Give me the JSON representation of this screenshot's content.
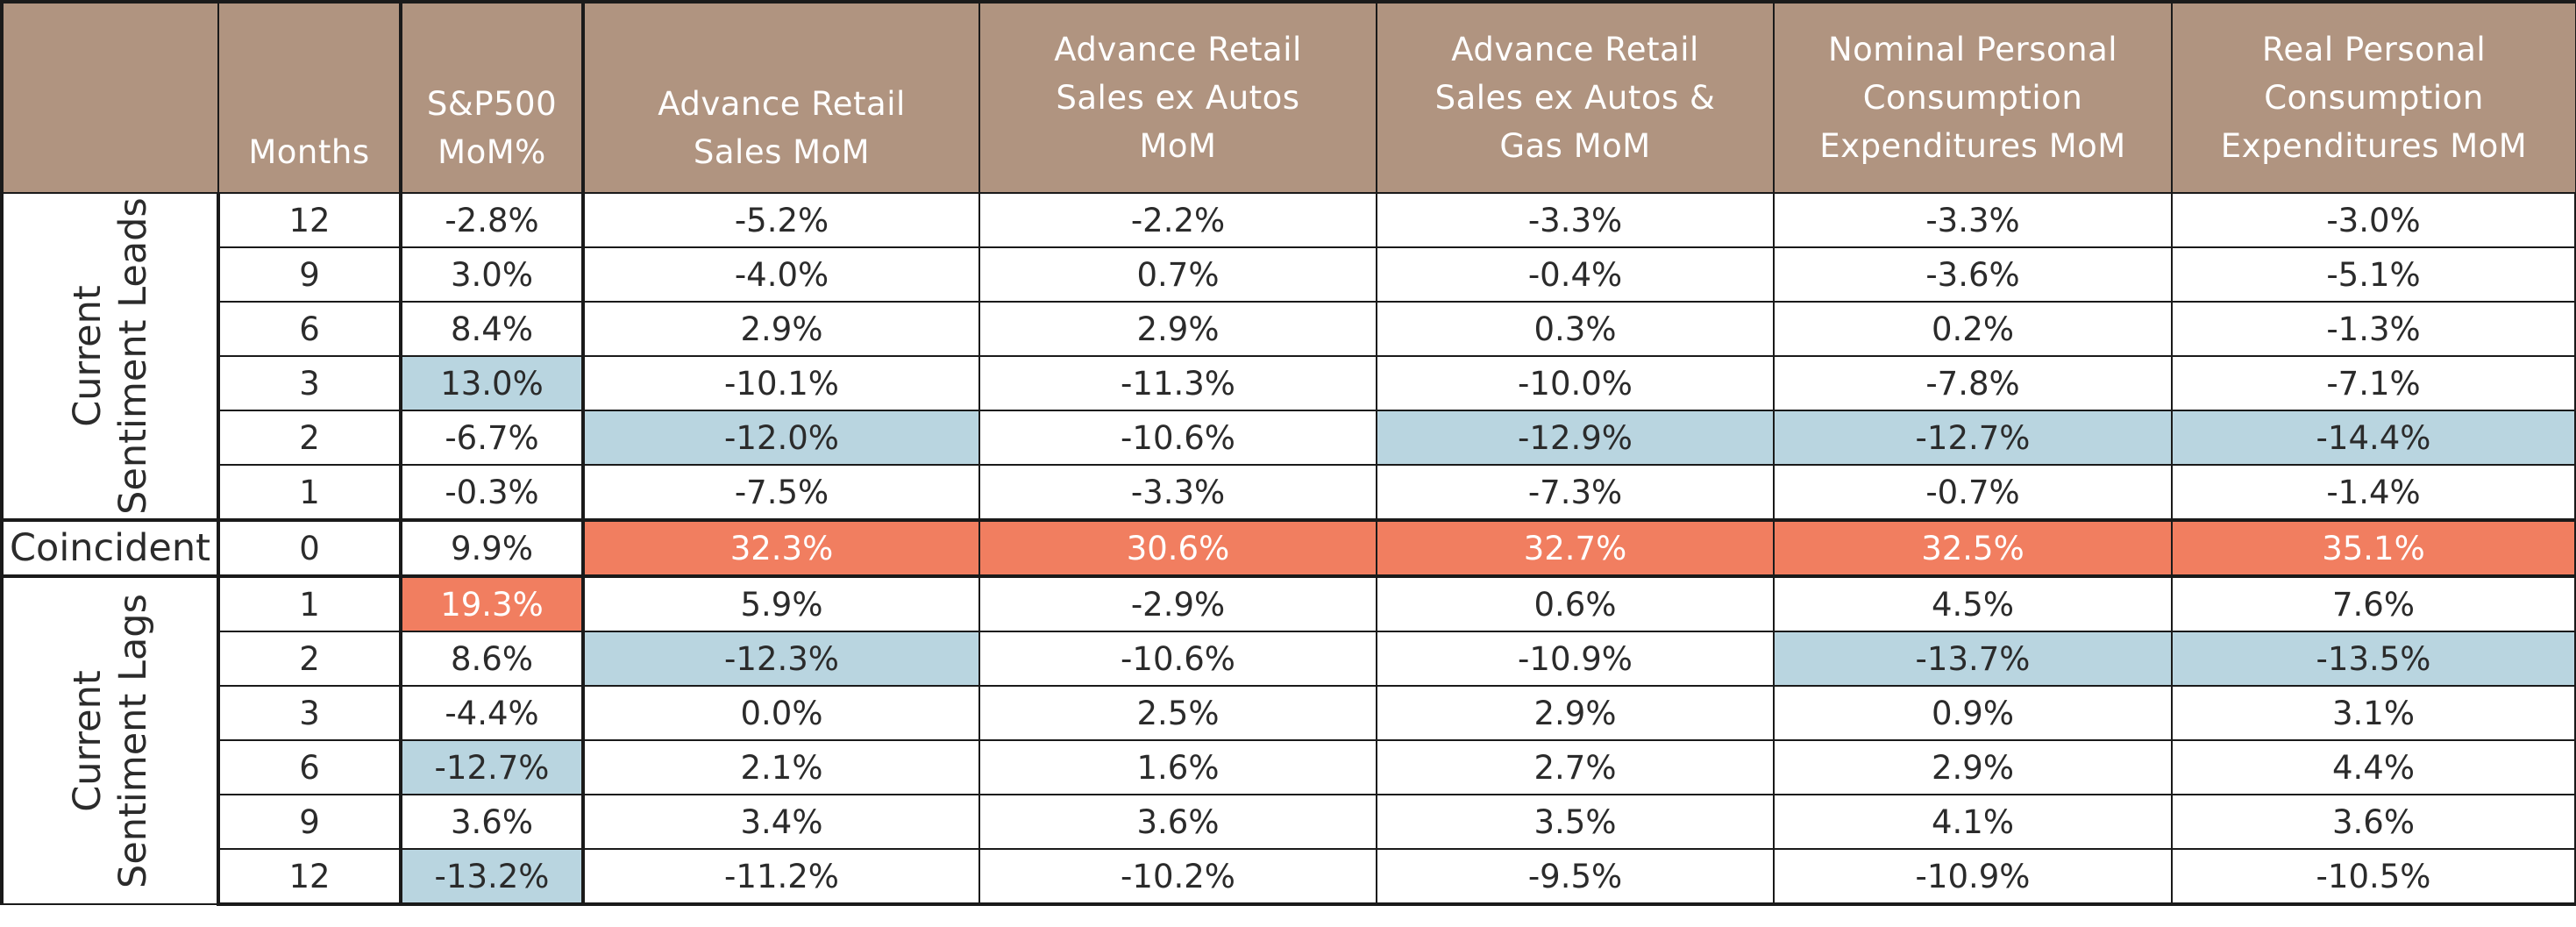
{
  "chart_data": {
    "type": "table",
    "columns": [
      "",
      "Months",
      "S&P500 MoM%",
      "Advance Retail Sales MoM",
      "Advance Retail Sales ex Autos MoM",
      "Advance Retail Sales ex Autos & Gas MoM",
      "Nominal Personal Consumption Expenditures MoM",
      "Real Personal Consumption Expenditures MoM"
    ],
    "column_lines": [
      [],
      [
        "Months"
      ],
      [
        "S&P500",
        "MoM%"
      ],
      [
        "Advance Retail",
        "Sales MoM"
      ],
      [
        "Advance Retail",
        "Sales ex Autos",
        "MoM"
      ],
      [
        "Advance Retail",
        "Sales ex Autos &",
        "Gas MoM"
      ],
      [
        "Nominal Personal",
        "Consumption",
        "Expenditures MoM"
      ],
      [
        "Real Personal",
        "Consumption",
        "Expenditures MoM"
      ]
    ],
    "highlight_colors": {
      "blue": "#b9d5e0",
      "red": "#f17e60",
      "header": "#b09480"
    },
    "groups": [
      {
        "label": "Current Sentiment Leads",
        "label_lines": [
          "Current",
          "Sentiment Leads"
        ],
        "rows": [
          {
            "months": "12",
            "values": [
              "-2.8%",
              "-5.2%",
              "-2.2%",
              "-3.3%",
              "-3.3%",
              "-3.0%"
            ],
            "highlight": [
              null,
              null,
              null,
              null,
              null,
              null
            ]
          },
          {
            "months": "9",
            "values": [
              "3.0%",
              "-4.0%",
              "0.7%",
              "-0.4%",
              "-3.6%",
              "-5.1%"
            ],
            "highlight": [
              null,
              null,
              null,
              null,
              null,
              null
            ]
          },
          {
            "months": "6",
            "values": [
              "8.4%",
              "2.9%",
              "2.9%",
              "0.3%",
              "0.2%",
              "-1.3%"
            ],
            "highlight": [
              null,
              null,
              null,
              null,
              null,
              null
            ]
          },
          {
            "months": "3",
            "values": [
              "13.0%",
              "-10.1%",
              "-11.3%",
              "-10.0%",
              "-7.8%",
              "-7.1%"
            ],
            "highlight": [
              "blue",
              null,
              null,
              null,
              null,
              null
            ]
          },
          {
            "months": "2",
            "values": [
              "-6.7%",
              "-12.0%",
              "-10.6%",
              "-12.9%",
              "-12.7%",
              "-14.4%"
            ],
            "highlight": [
              null,
              "blue",
              null,
              "blue",
              "blue",
              "blue"
            ]
          },
          {
            "months": "1",
            "values": [
              "-0.3%",
              "-7.5%",
              "-3.3%",
              "-7.3%",
              "-0.7%",
              "-1.4%"
            ],
            "highlight": [
              null,
              null,
              null,
              null,
              null,
              null
            ]
          }
        ]
      },
      {
        "label": "Coincident",
        "label_lines": [
          "Coincident"
        ],
        "rows": [
          {
            "months": "0",
            "values": [
              "9.9%",
              "32.3%",
              "30.6%",
              "32.7%",
              "32.5%",
              "35.1%"
            ],
            "highlight": [
              null,
              "red",
              "red",
              "red",
              "red",
              "red"
            ]
          }
        ]
      },
      {
        "label": "Current Sentiment Lags",
        "label_lines": [
          "Current",
          "Sentiment Lags"
        ],
        "rows": [
          {
            "months": "1",
            "values": [
              "19.3%",
              "5.9%",
              "-2.9%",
              "0.6%",
              "4.5%",
              "7.6%"
            ],
            "highlight": [
              "red",
              null,
              null,
              null,
              null,
              null
            ]
          },
          {
            "months": "2",
            "values": [
              "8.6%",
              "-12.3%",
              "-10.6%",
              "-10.9%",
              "-13.7%",
              "-13.5%"
            ],
            "highlight": [
              null,
              "blue",
              null,
              null,
              "blue",
              "blue"
            ]
          },
          {
            "months": "3",
            "values": [
              "-4.4%",
              "0.0%",
              "2.5%",
              "2.9%",
              "0.9%",
              "3.1%"
            ],
            "highlight": [
              null,
              null,
              null,
              null,
              null,
              null
            ]
          },
          {
            "months": "6",
            "values": [
              "-12.7%",
              "2.1%",
              "1.6%",
              "2.7%",
              "2.9%",
              "4.4%"
            ],
            "highlight": [
              "blue",
              null,
              null,
              null,
              null,
              null
            ]
          },
          {
            "months": "9",
            "values": [
              "3.6%",
              "3.4%",
              "3.6%",
              "3.5%",
              "4.1%",
              "3.6%"
            ],
            "highlight": [
              null,
              null,
              null,
              null,
              null,
              null
            ]
          },
          {
            "months": "12",
            "values": [
              "-13.2%",
              "-11.2%",
              "-10.2%",
              "-9.5%",
              "-10.9%",
              "-10.5%"
            ],
            "highlight": [
              "blue",
              null,
              null,
              null,
              null,
              null
            ]
          }
        ]
      }
    ]
  }
}
